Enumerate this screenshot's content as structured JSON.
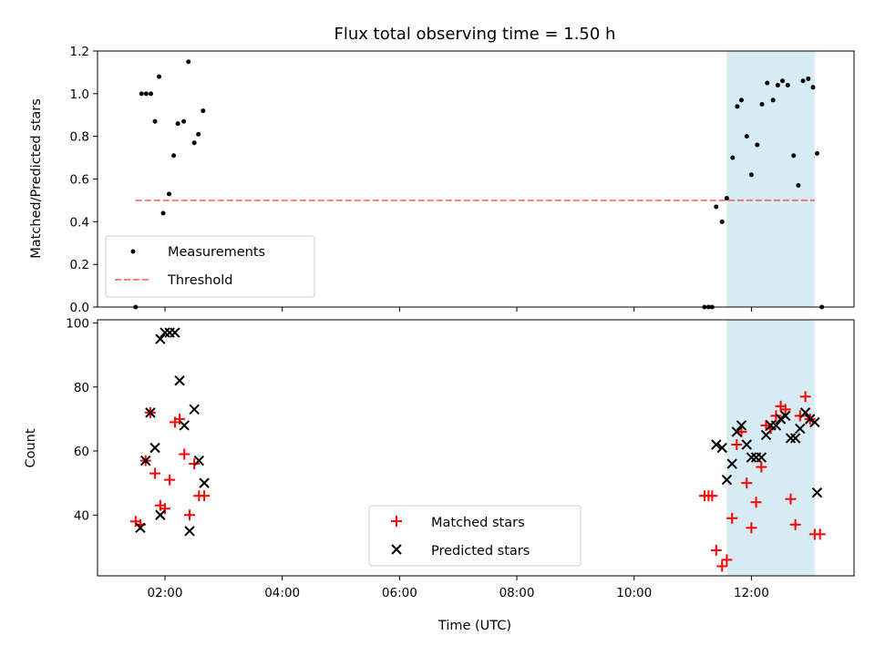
{
  "chart_data": [
    {
      "type": "scatter",
      "title": "Flux total observing time = 1.50 h",
      "xlabel": "",
      "ylabel": "Matched/Predicted stars",
      "xlim": [
        0.85,
        13.75
      ],
      "ylim": [
        0,
        1.2
      ],
      "yticks": [
        "0.0",
        "0.2",
        "0.4",
        "0.6",
        "0.8",
        "1.0",
        "1.2"
      ],
      "yticks_values": [
        0,
        0.2,
        0.4,
        0.6,
        0.8,
        1.0,
        1.2
      ],
      "shaded_span_hours": [
        11.58,
        13.08
      ],
      "shaded_color": "#add8e6",
      "threshold": {
        "name": "Threshold",
        "value": 0.5,
        "x_range": [
          1.5,
          13.08
        ],
        "color": "#ff0000"
      },
      "series": [
        {
          "name": "Measurements",
          "marker": "dot",
          "color": "#000000",
          "x": [
            1.5,
            1.6,
            1.68,
            1.76,
            1.83,
            1.9,
            1.97,
            2.07,
            2.15,
            2.22,
            2.32,
            2.4,
            2.5,
            2.57,
            2.65,
            11.2,
            11.27,
            11.33,
            11.4,
            11.5,
            11.58,
            11.68,
            11.76,
            11.83,
            11.92,
            12.0,
            12.1,
            12.18,
            12.27,
            12.37,
            12.45,
            12.53,
            12.62,
            12.72,
            12.8,
            12.88,
            12.97,
            13.05,
            13.12,
            13.2
          ],
          "y": [
            0.0,
            1.0,
            1.0,
            1.0,
            0.87,
            1.08,
            0.44,
            0.53,
            0.71,
            0.86,
            0.87,
            1.15,
            0.77,
            0.81,
            0.92,
            0.0,
            0.0,
            0.0,
            0.47,
            0.4,
            0.51,
            0.7,
            0.94,
            0.97,
            0.8,
            0.62,
            0.76,
            0.95,
            1.05,
            0.97,
            1.04,
            1.06,
            1.04,
            0.71,
            0.57,
            1.06,
            1.07,
            1.03,
            0.72,
            0.0
          ]
        }
      ],
      "legend": [
        "Measurements",
        "Threshold"
      ],
      "legend_position": "lower-left",
      "grid": false
    },
    {
      "type": "scatter",
      "xlabel": "Time (UTC)",
      "ylabel": "Count",
      "xlim": [
        0.85,
        13.75
      ],
      "ylim": [
        21,
        101
      ],
      "xticks": [
        "02:00",
        "04:00",
        "06:00",
        "08:00",
        "10:00",
        "12:00"
      ],
      "xticks_hours": [
        2,
        4,
        6,
        8,
        10,
        12
      ],
      "yticks": [
        "40",
        "60",
        "80",
        "100"
      ],
      "yticks_values": [
        40,
        60,
        80,
        100
      ],
      "shaded_span_hours": [
        11.58,
        13.08
      ],
      "series": [
        {
          "name": "Matched stars",
          "marker": "plus",
          "color": "#ff0000",
          "x": [
            1.5,
            1.58,
            1.67,
            1.75,
            1.83,
            1.92,
            2.0,
            2.08,
            2.17,
            2.25,
            2.33,
            2.42,
            2.5,
            2.58,
            2.67,
            11.2,
            11.27,
            11.33,
            11.4,
            11.5,
            11.58,
            11.67,
            11.75,
            11.83,
            11.92,
            12.0,
            12.08,
            12.17,
            12.25,
            12.33,
            12.42,
            12.5,
            12.58,
            12.67,
            12.75,
            12.83,
            12.92,
            13.0,
            13.08,
            13.17
          ],
          "y": [
            38,
            37,
            57,
            72,
            53,
            43,
            42,
            51,
            69,
            70,
            59,
            40,
            56,
            46,
            46,
            46,
            46,
            46,
            29,
            24,
            26,
            39,
            62,
            66,
            50,
            36,
            44,
            55,
            68,
            67,
            71,
            74,
            73,
            45,
            37,
            71,
            77,
            70,
            34,
            34
          ]
        },
        {
          "name": "Predicted stars",
          "marker": "x",
          "color": "#000000",
          "x": [
            1.58,
            1.67,
            1.75,
            1.83,
            1.92,
            1.92,
            2.0,
            2.08,
            2.17,
            2.25,
            2.33,
            2.42,
            2.5,
            2.58,
            2.67,
            11.4,
            11.5,
            11.58,
            11.67,
            11.75,
            11.83,
            11.92,
            12.0,
            12.08,
            12.17,
            12.25,
            12.33,
            12.42,
            12.5,
            12.58,
            12.67,
            12.75,
            12.83,
            12.92,
            13.0,
            13.08,
            13.12
          ],
          "y": [
            36,
            57,
            72,
            61,
            40,
            95,
            97,
            97,
            97,
            82,
            68,
            35,
            73,
            57,
            50,
            62,
            61,
            51,
            56,
            66,
            68,
            62,
            58,
            58,
            58,
            65,
            68,
            68,
            70,
            71,
            64,
            64,
            67,
            72,
            70,
            69,
            47
          ]
        }
      ],
      "legend": [
        "Matched stars",
        "Predicted stars"
      ],
      "legend_position": "lower-center",
      "grid": false
    }
  ]
}
